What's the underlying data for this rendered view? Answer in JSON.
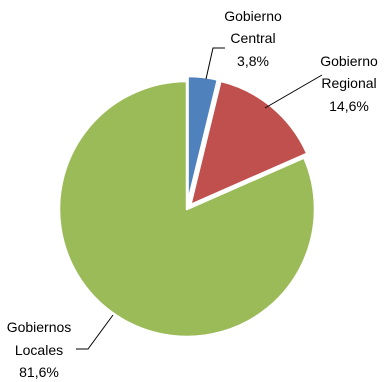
{
  "chart_data": {
    "type": "pie",
    "slices": [
      {
        "name": "Gobierno Central",
        "name_lines": [
          "Gobierno",
          "Central"
        ],
        "value": 3.8,
        "label": "3,8%",
        "color": "#4f81bd",
        "exploded": true
      },
      {
        "name": "Gobierno Regional",
        "name_lines": [
          "Gobierno",
          "Regional"
        ],
        "value": 14.6,
        "label": "14,6%",
        "color": "#c0504d",
        "exploded": true
      },
      {
        "name": "Gobiernos Locales",
        "name_lines": [
          "Gobiernos",
          "Locales"
        ],
        "value": 81.6,
        "label": "81,6%",
        "color": "#9bbb59",
        "exploded": false
      }
    ],
    "start_angle": "12 o'clock",
    "direction": "clockwise",
    "legend": "none",
    "label_style": "outside with leader lines"
  }
}
